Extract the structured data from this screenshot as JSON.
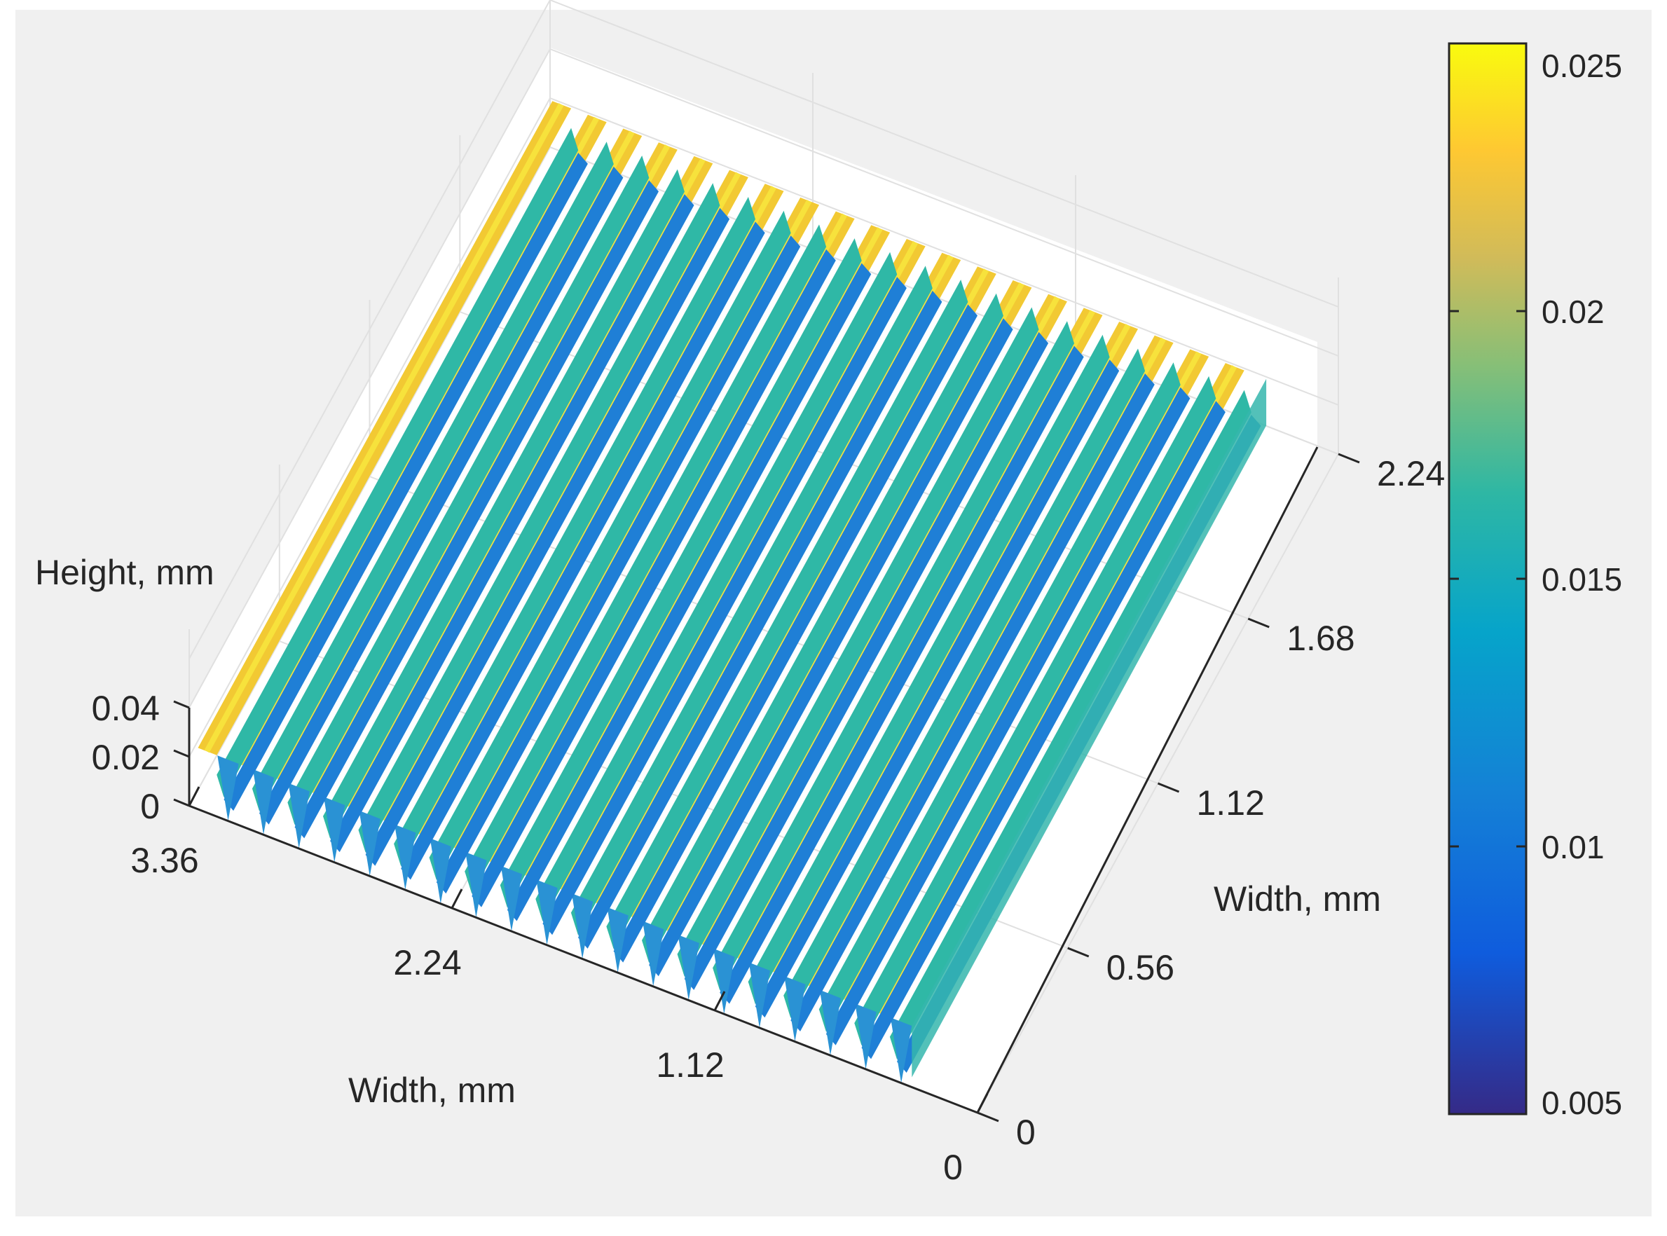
{
  "chart_data": {
    "type": "surface",
    "title": "",
    "xlabel": "Width, mm",
    "ylabel": "Width, mm",
    "zlabel": "Height, mm",
    "x_ticks": [
      "0",
      "1.12",
      "2.24",
      "3.36"
    ],
    "y_ticks": [
      "0",
      "0.56",
      "1.12",
      "1.68",
      "2.24"
    ],
    "z_ticks": [
      "0",
      "0.02",
      "0.04"
    ],
    "xlim": [
      0,
      3.36
    ],
    "ylim": [
      0,
      2.24
    ],
    "zlim": [
      0,
      0.04
    ],
    "ridge_count": 20,
    "ridge_direction": "along y-axis, repeating along x-axis",
    "surface_height_range": [
      0.005,
      0.025
    ],
    "colorbar": {
      "ticks": [
        "0.005",
        "0.01",
        "0.015",
        "0.02",
        "0.025"
      ],
      "range": [
        0.005,
        0.025
      ],
      "colormap": "parula",
      "placement": "right"
    },
    "colors": {
      "background": "#f0f0f0",
      "panes": "#ffffff",
      "grid": "#e0e0e0",
      "axis": "#262626"
    },
    "grid": true
  }
}
